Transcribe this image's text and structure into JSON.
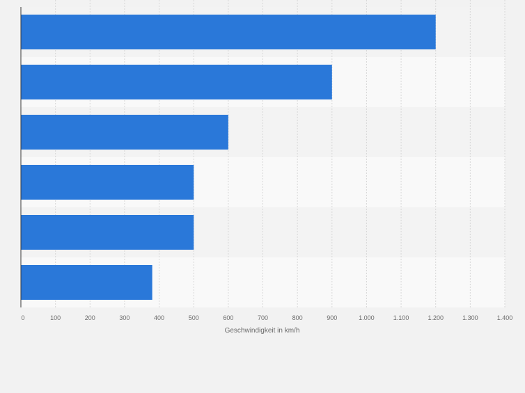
{
  "chart_data": {
    "type": "bar",
    "orientation": "horizontal",
    "categories": [
      "",
      "",
      "",
      "",
      "",
      ""
    ],
    "values": [
      1200,
      900,
      600,
      500,
      500,
      380
    ],
    "xlabel": "Geschwindigkeit in km/h",
    "ylabel": "",
    "xlim": [
      0,
      1400
    ],
    "ticks": [
      0,
      100,
      200,
      300,
      400,
      500,
      600,
      700,
      800,
      900,
      1000,
      1100,
      1200,
      1300,
      1400
    ],
    "tick_labels": [
      "0",
      "100",
      "200",
      "300",
      "400",
      "500",
      "600",
      "700",
      "800",
      "900",
      "1.000",
      "1.100",
      "1.200",
      "1.300",
      "1.400"
    ],
    "grid": true,
    "legend": "none",
    "colors": {
      "bar": "#2a78d9",
      "band_dark": "#f3f3f3",
      "band_light": "#f9f9f9",
      "grid": "#d7d7d7",
      "axis": "#3a3a3a",
      "text": "#6b6b6b"
    }
  }
}
